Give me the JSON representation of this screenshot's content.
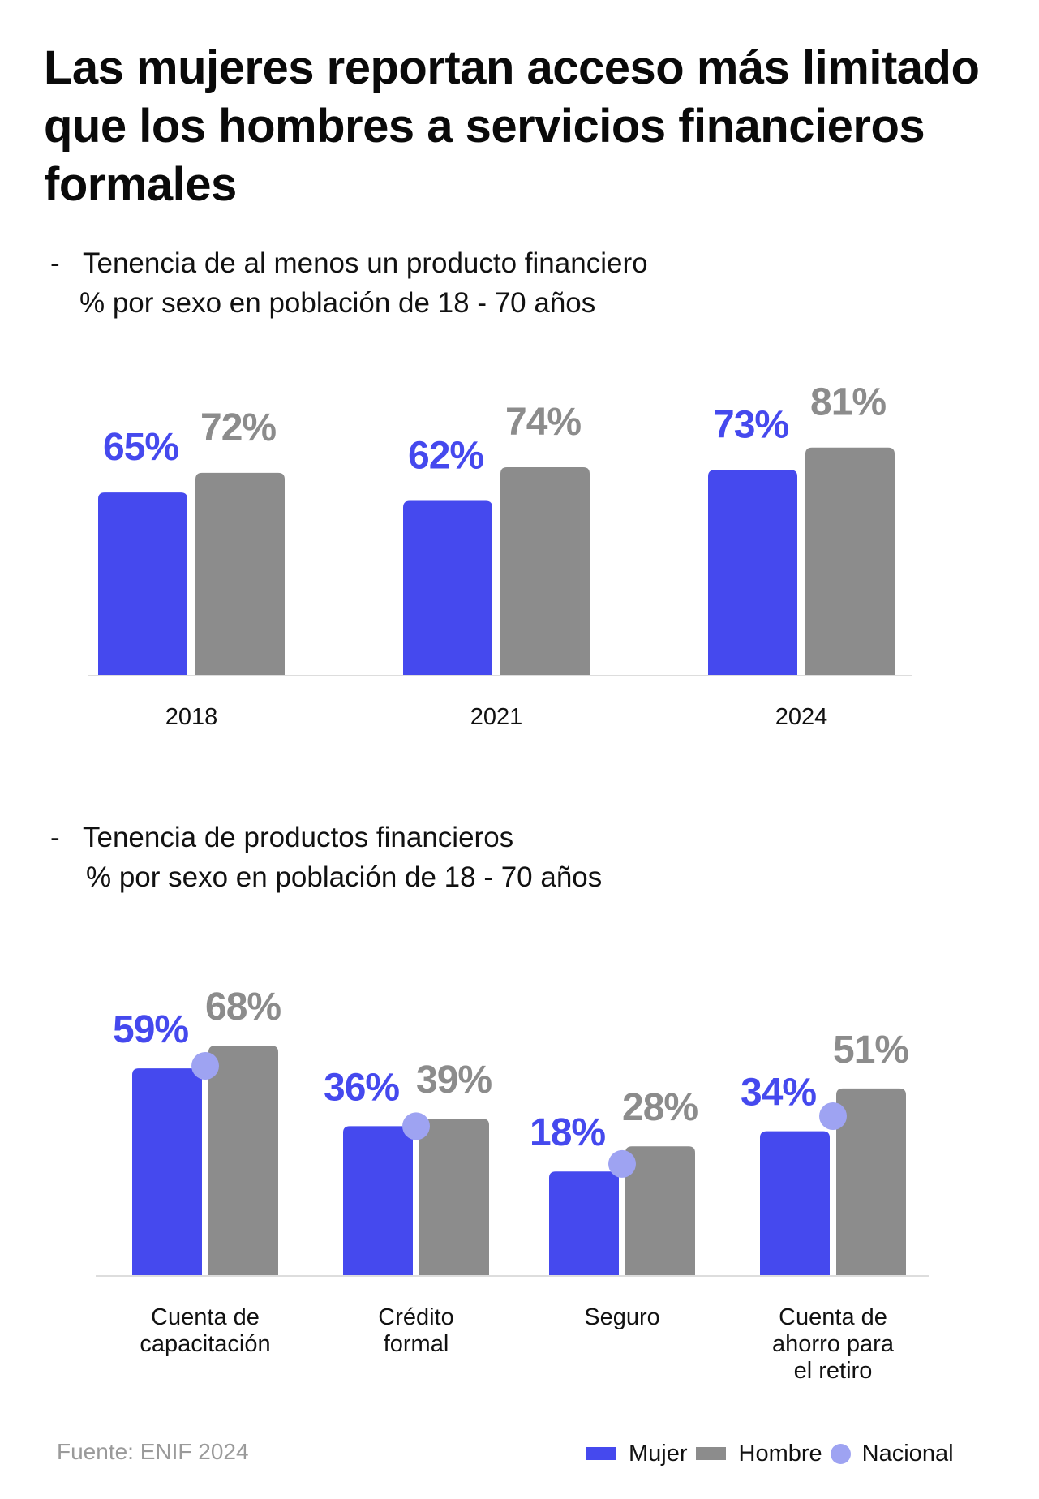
{
  "title_lines": [
    "Las mujeres reportan acceso más limitado",
    "que los hombres a servicios financieros",
    "formales"
  ],
  "colors": {
    "mujer": "#4549EE",
    "hombre": "#8C8C8C",
    "nacional": "#9EA3F2",
    "axis": "#DDDDDD",
    "source_text": "#9A9A9A"
  },
  "chart_data": [
    {
      "type": "bar",
      "title": "Tenencia de al menos un producto financiero",
      "subtitle_bullet": "-",
      "subtitle": "% por sexo en población de 18 - 70 años",
      "xlabel": "",
      "ylabel": "",
      "ylim": [
        0,
        100
      ],
      "grid": false,
      "categories": [
        "2018",
        "2021",
        "2024"
      ],
      "series": [
        {
          "name": "Mujer",
          "values": [
            65,
            62,
            73
          ],
          "labels": [
            "65%",
            "62%",
            "73%"
          ]
        },
        {
          "name": "Hombre",
          "values": [
            72,
            74,
            81
          ],
          "labels": [
            "72%",
            "74%",
            "81%"
          ]
        }
      ]
    },
    {
      "type": "bar",
      "title": "Tenencia de productos financieros",
      "subtitle_bullet": "-",
      "subtitle": "% por sexo en población de 18 - 70 años",
      "xlabel": "",
      "ylabel": "",
      "grid": false,
      "categories": [
        [
          "Cuenta de",
          "capacitación"
        ],
        [
          "Crédito",
          "formal"
        ],
        [
          "Seguro"
        ],
        [
          "Cuenta de",
          "ahorro para",
          "el retiro"
        ]
      ],
      "series": [
        {
          "name": "Mujer",
          "values": [
            59,
            36,
            18,
            34
          ],
          "labels": [
            "59%",
            "36%",
            "18%",
            "34%"
          ]
        },
        {
          "name": "Hombre",
          "values": [
            68,
            39,
            28,
            51
          ],
          "labels": [
            "68%",
            "39%",
            "28%",
            "51%"
          ]
        },
        {
          "name": "Nacional",
          "marker": "dot",
          "values": [
            60,
            36,
            21,
            40
          ],
          "labels_shown": false
        }
      ]
    }
  ],
  "legend": {
    "placement": "bottom-right",
    "items": [
      {
        "label": "Mujer",
        "shape": "square",
        "series": "mujer"
      },
      {
        "label": "Hombre",
        "shape": "square",
        "series": "hombre"
      },
      {
        "label": "Nacional",
        "shape": "circle",
        "series": "nacional"
      }
    ]
  },
  "source": "Fuente: ENIF 2024"
}
